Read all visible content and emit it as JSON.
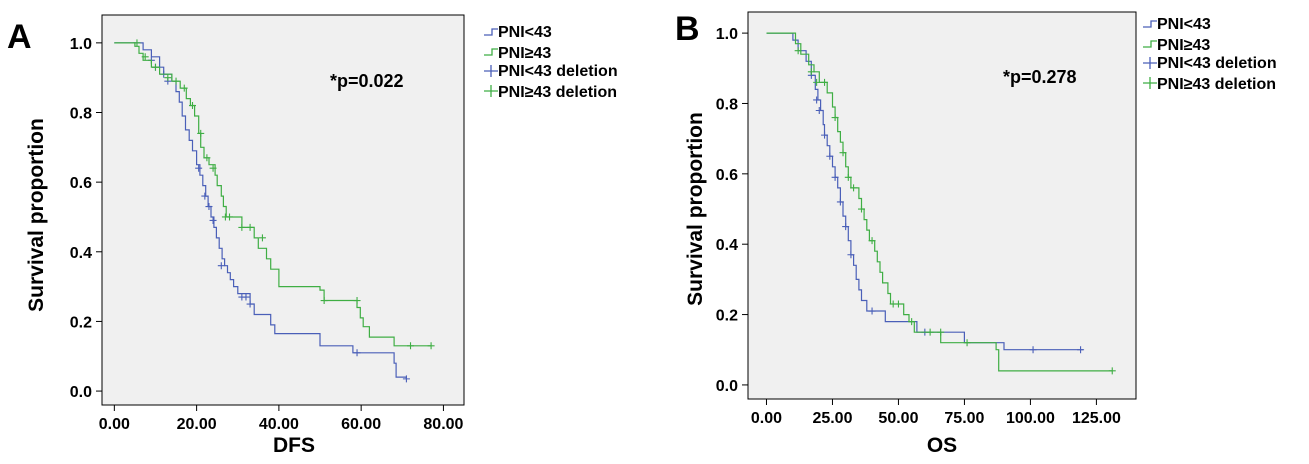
{
  "chart_data": [
    {
      "type": "line",
      "subtype": "kaplan-meier",
      "panel_label": "A",
      "xlabel": "DFS",
      "ylabel": "Survival proportion",
      "xlim": [
        -3,
        85
      ],
      "ylim": [
        -0.04,
        1.08
      ],
      "x_ticks": [
        0,
        20,
        40,
        60,
        80
      ],
      "x_tick_labels": [
        "0.00",
        "20.00",
        "40.00",
        "60.00",
        "80.00"
      ],
      "y_ticks": [
        0,
        0.2,
        0.4,
        0.6,
        0.8,
        1.0
      ],
      "y_tick_labels": [
        "0.0",
        "0.2",
        "0.4",
        "0.6",
        "0.8",
        "1.0"
      ],
      "annotation": "*p=0.022",
      "grid": false,
      "legend_position": "outside-right-top",
      "legend": [
        "PNI<43",
        "PNI≥43",
        "PNI<43 deletion",
        "PNI≥43 deletion"
      ],
      "series": [
        {
          "name": "PNI<43",
          "color": "#4a5fb8",
          "steps": [
            [
              0,
              1.0
            ],
            [
              7,
              0.98
            ],
            [
              9,
              0.96
            ],
            [
              11,
              0.93
            ],
            [
              12,
              0.91
            ],
            [
              14,
              0.89
            ],
            [
              15,
              0.86
            ],
            [
              15.8,
              0.83
            ],
            [
              16.5,
              0.79
            ],
            [
              17.3,
              0.75
            ],
            [
              18.2,
              0.72
            ],
            [
              19,
              0.69
            ],
            [
              20,
              0.65
            ],
            [
              20.8,
              0.62
            ],
            [
              21.5,
              0.59
            ],
            [
              22.2,
              0.56
            ],
            [
              22.8,
              0.53
            ],
            [
              23.5,
              0.5
            ],
            [
              24.2,
              0.47
            ],
            [
              24.8,
              0.44
            ],
            [
              25.5,
              0.41
            ],
            [
              26.2,
              0.38
            ],
            [
              26.8,
              0.36
            ],
            [
              27.5,
              0.34
            ],
            [
              28.2,
              0.32
            ],
            [
              29,
              0.3
            ],
            [
              30,
              0.28
            ],
            [
              33,
              0.25
            ],
            [
              34,
              0.22
            ],
            [
              38,
              0.19
            ],
            [
              39,
              0.165
            ],
            [
              50,
              0.13
            ],
            [
              58,
              0.11
            ],
            [
              68,
              0.08
            ],
            [
              68.5,
              0.04
            ],
            [
              71,
              0.035
            ]
          ],
          "censored": [
            [
              9,
              0.95
            ],
            [
              10,
              0.93
            ],
            [
              12,
              0.91
            ],
            [
              13,
              0.89
            ],
            [
              20.5,
              0.64
            ],
            [
              22,
              0.56
            ],
            [
              23,
              0.53
            ],
            [
              24,
              0.49
            ],
            [
              26,
              0.36
            ],
            [
              31,
              0.27
            ],
            [
              32,
              0.27
            ],
            [
              33,
              0.25
            ],
            [
              59,
              0.11
            ],
            [
              71,
              0.035
            ]
          ]
        },
        {
          "name": "PNI≥43",
          "color": "#3fae44",
          "steps": [
            [
              0,
              1.0
            ],
            [
              5,
              0.99
            ],
            [
              6,
              0.97
            ],
            [
              7,
              0.95
            ],
            [
              9,
              0.93
            ],
            [
              11,
              0.91
            ],
            [
              14,
              0.89
            ],
            [
              16,
              0.87
            ],
            [
              17.5,
              0.84
            ],
            [
              18.5,
              0.82
            ],
            [
              19.5,
              0.79
            ],
            [
              20.5,
              0.74
            ],
            [
              21,
              0.7
            ],
            [
              21.8,
              0.67
            ],
            [
              23,
              0.65
            ],
            [
              24.5,
              0.62
            ],
            [
              25,
              0.59
            ],
            [
              26,
              0.56
            ],
            [
              26.5,
              0.53
            ],
            [
              27.2,
              0.5
            ],
            [
              31,
              0.47
            ],
            [
              34,
              0.44
            ],
            [
              35,
              0.41
            ],
            [
              37,
              0.38
            ],
            [
              38,
              0.35
            ],
            [
              40,
              0.3
            ],
            [
              50,
              0.29
            ],
            [
              51,
              0.26
            ],
            [
              59,
              0.24
            ],
            [
              59.8,
              0.21
            ],
            [
              60.5,
              0.185
            ],
            [
              62,
              0.155
            ],
            [
              68,
              0.13
            ],
            [
              77,
              0.13
            ]
          ],
          "censored": [
            [
              5.5,
              1.0
            ],
            [
              7.5,
              0.96
            ],
            [
              10,
              0.93
            ],
            [
              13,
              0.9
            ],
            [
              15,
              0.89
            ],
            [
              17,
              0.87
            ],
            [
              19,
              0.82
            ],
            [
              21,
              0.74
            ],
            [
              22.5,
              0.67
            ],
            [
              24,
              0.64
            ],
            [
              27,
              0.5
            ],
            [
              28,
              0.5
            ],
            [
              31,
              0.47
            ],
            [
              33,
              0.47
            ],
            [
              36,
              0.44
            ],
            [
              51,
              0.26
            ],
            [
              59,
              0.26
            ],
            [
              72,
              0.13
            ],
            [
              77,
              0.13
            ]
          ]
        }
      ]
    },
    {
      "type": "line",
      "subtype": "kaplan-meier",
      "panel_label": "B",
      "xlabel": "OS",
      "ylabel": "Survival proportion",
      "xlim": [
        -7,
        140
      ],
      "ylim": [
        -0.04,
        1.06
      ],
      "x_ticks": [
        0,
        25,
        50,
        75,
        100,
        125
      ],
      "x_tick_labels": [
        "0.00",
        "25.00",
        "50.00",
        "75.00",
        "100.00",
        "125.00"
      ],
      "y_ticks": [
        0,
        0.2,
        0.4,
        0.6,
        0.8,
        1.0
      ],
      "y_tick_labels": [
        "0.0",
        "0.2",
        "0.4",
        "0.6",
        "0.8",
        "1.0"
      ],
      "annotation": "*p=0.278",
      "grid": false,
      "legend_position": "outside-right-top",
      "legend": [
        "PNI<43",
        "PNI≥43",
        "PNI<43 deletion",
        "PNI≥43 deletion"
      ],
      "series": [
        {
          "name": "PNI<43",
          "color": "#4a5fb8",
          "steps": [
            [
              0,
              1.0
            ],
            [
              10,
              0.98
            ],
            [
              12,
              0.95
            ],
            [
              15,
              0.92
            ],
            [
              17,
              0.88
            ],
            [
              18.5,
              0.84
            ],
            [
              19.5,
              0.81
            ],
            [
              20.5,
              0.78
            ],
            [
              21.5,
              0.74
            ],
            [
              22,
              0.71
            ],
            [
              23,
              0.68
            ],
            [
              24,
              0.65
            ],
            [
              25,
              0.62
            ],
            [
              26,
              0.59
            ],
            [
              27,
              0.56
            ],
            [
              28,
              0.52
            ],
            [
              29,
              0.48
            ],
            [
              30,
              0.45
            ],
            [
              31,
              0.41
            ],
            [
              32,
              0.37
            ],
            [
              33,
              0.34
            ],
            [
              34,
              0.3
            ],
            [
              35,
              0.27
            ],
            [
              36,
              0.24
            ],
            [
              38,
              0.21
            ],
            [
              40,
              0.21
            ],
            [
              45,
              0.18
            ],
            [
              57,
              0.15
            ],
            [
              75,
              0.12
            ],
            [
              90,
              0.1
            ],
            [
              120,
              0.1
            ]
          ],
          "censored": [
            [
              17,
              0.88
            ],
            [
              19,
              0.81
            ],
            [
              20,
              0.78
            ],
            [
              22,
              0.71
            ],
            [
              24,
              0.65
            ],
            [
              26,
              0.59
            ],
            [
              28,
              0.52
            ],
            [
              30,
              0.45
            ],
            [
              32,
              0.37
            ],
            [
              40,
              0.21
            ],
            [
              60,
              0.15
            ],
            [
              101,
              0.1
            ],
            [
              119,
              0.1
            ]
          ]
        },
        {
          "name": "PNI≥43",
          "color": "#3fae44",
          "steps": [
            [
              0,
              1.0
            ],
            [
              11,
              0.97
            ],
            [
              13,
              0.94
            ],
            [
              16,
              0.91
            ],
            [
              18,
              0.89
            ],
            [
              20,
              0.86
            ],
            [
              23,
              0.83
            ],
            [
              25,
              0.79
            ],
            [
              26,
              0.76
            ],
            [
              27,
              0.72
            ],
            [
              28,
              0.69
            ],
            [
              29,
              0.66
            ],
            [
              30,
              0.62
            ],
            [
              31,
              0.59
            ],
            [
              32,
              0.56
            ],
            [
              35,
              0.53
            ],
            [
              36,
              0.5
            ],
            [
              37,
              0.47
            ],
            [
              38,
              0.44
            ],
            [
              39,
              0.41
            ],
            [
              41,
              0.38
            ],
            [
              42,
              0.35
            ],
            [
              43,
              0.32
            ],
            [
              44,
              0.29
            ],
            [
              46,
              0.26
            ],
            [
              47,
              0.23
            ],
            [
              52,
              0.2
            ],
            [
              54,
              0.18
            ],
            [
              56,
              0.15
            ],
            [
              60,
              0.15
            ],
            [
              66,
              0.12
            ],
            [
              87,
              0.1
            ],
            [
              88,
              0.04
            ],
            [
              131,
              0.04
            ]
          ],
          "censored": [
            [
              12,
              0.95
            ],
            [
              17,
              0.89
            ],
            [
              19,
              0.86
            ],
            [
              22,
              0.86
            ],
            [
              26,
              0.76
            ],
            [
              29,
              0.66
            ],
            [
              31,
              0.59
            ],
            [
              33,
              0.56
            ],
            [
              36,
              0.5
            ],
            [
              40,
              0.41
            ],
            [
              48,
              0.23
            ],
            [
              50,
              0.23
            ],
            [
              55,
              0.18
            ],
            [
              62,
              0.15
            ],
            [
              66,
              0.15
            ],
            [
              76,
              0.12
            ],
            [
              131,
              0.04
            ]
          ]
        }
      ]
    }
  ]
}
